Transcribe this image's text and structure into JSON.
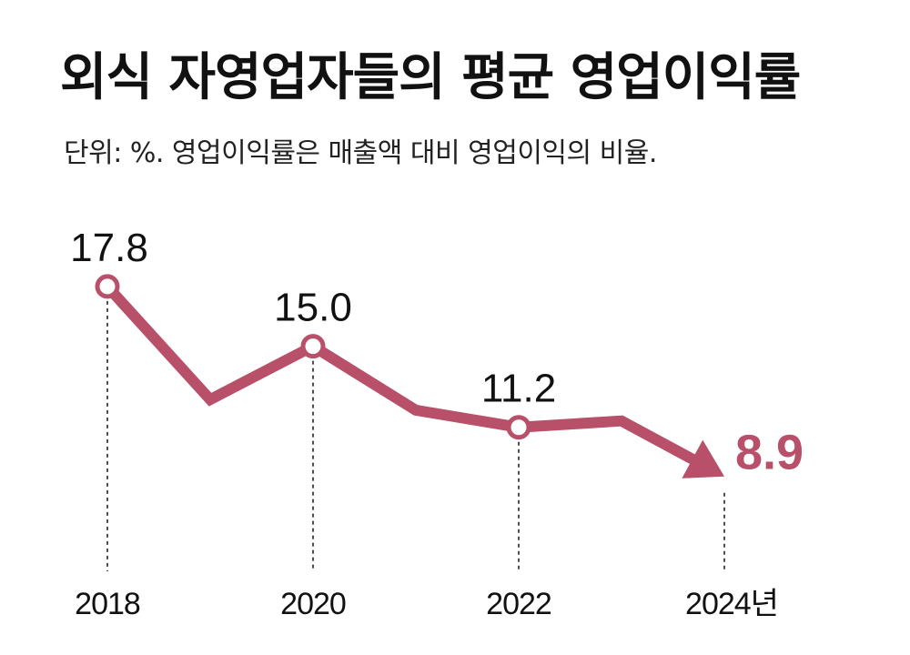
{
  "header": {
    "title": "외식 자영업자들의 평균 영업이익률",
    "subtitle": "단위: %. 영업이익률은 매출액 대비 영업이익의 비율."
  },
  "chart_data": {
    "type": "line",
    "title": "외식 자영업자들의 평균 영업이익률",
    "subtitle": "단위: %. 영업이익률은 매출액 대비 영업이익의 비율.",
    "xlabel": "",
    "ylabel": "",
    "x_unit": "년",
    "x": [
      2018,
      2019,
      2020,
      2021,
      2022,
      2023,
      2024
    ],
    "y": [
      17.8,
      12.5,
      15.0,
      12.0,
      11.2,
      11.5,
      8.9
    ],
    "labeled_points": [
      {
        "x": 2018,
        "label": "17.8"
      },
      {
        "x": 2020,
        "label": "15.0"
      },
      {
        "x": 2022,
        "label": "11.2"
      },
      {
        "x": 2024,
        "label": "8.9"
      }
    ],
    "tick_labels": [
      "2018",
      "2020",
      "2022",
      "2024년"
    ],
    "ylim": [
      6.5,
      19.5
    ],
    "grid": false,
    "legend": "none",
    "colors": {
      "line": "#b8506a",
      "text": "#111111"
    }
  }
}
